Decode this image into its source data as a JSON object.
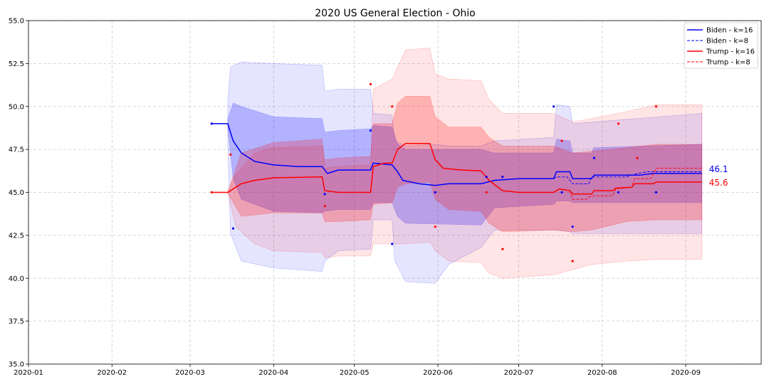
{
  "chart_data": {
    "type": "line",
    "title": "2020 US General Election - Ohio",
    "xlabel": "",
    "ylabel": "",
    "x_axis": "date",
    "xlim": [
      "2020-01-01",
      "2020-09-29"
    ],
    "ylim": [
      35.0,
      55.0
    ],
    "grid": true,
    "legend_position": "top-right",
    "x_ticks": [
      "2020-01",
      "2020-02",
      "2020-03",
      "2020-04",
      "2020-05",
      "2020-06",
      "2020-07",
      "2020-08",
      "2020-09"
    ],
    "y_ticks": [
      "35.0",
      "37.5",
      "40.0",
      "42.5",
      "45.0",
      "47.5",
      "50.0",
      "52.5",
      "55.0"
    ],
    "legend": [
      {
        "label": "Biden - k=16",
        "color": "#0000ff",
        "style": "solid"
      },
      {
        "label": "Biden - k=8",
        "color": "#0000ff",
        "style": "dashed"
      },
      {
        "label": "Trump - k=16",
        "color": "#ff0000",
        "style": "solid"
      },
      {
        "label": "Trump - k=8",
        "color": "#ff0000",
        "style": "dashed"
      }
    ],
    "series": [
      {
        "name": "Biden - k=16",
        "color": "#0000ff",
        "style": "solid",
        "end_label": "46.1",
        "points": [
          [
            "2020-03-09",
            49.0
          ],
          [
            "2020-03-15",
            49.0
          ],
          [
            "2020-03-17",
            48.0
          ],
          [
            "2020-03-20",
            47.3
          ],
          [
            "2020-03-25",
            46.8
          ],
          [
            "2020-04-01",
            46.6
          ],
          [
            "2020-04-10",
            46.5
          ],
          [
            "2020-04-19",
            46.5
          ],
          [
            "2020-04-21",
            46.1
          ],
          [
            "2020-04-25",
            46.3
          ],
          [
            "2020-05-07",
            46.3
          ],
          [
            "2020-05-08",
            46.7
          ],
          [
            "2020-05-15",
            46.6
          ],
          [
            "2020-05-17",
            46.2
          ],
          [
            "2020-05-19",
            45.7
          ],
          [
            "2020-05-25",
            45.5
          ],
          [
            "2020-05-31",
            45.4
          ],
          [
            "2020-06-05",
            45.5
          ],
          [
            "2020-06-17",
            45.5
          ],
          [
            "2020-06-22",
            45.7
          ],
          [
            "2020-07-01",
            45.8
          ],
          [
            "2020-07-14",
            45.8
          ],
          [
            "2020-07-15",
            46.2
          ],
          [
            "2020-07-20",
            46.2
          ],
          [
            "2020-07-21",
            45.8
          ],
          [
            "2020-07-28",
            45.8
          ],
          [
            "2020-07-29",
            46.0
          ],
          [
            "2020-08-15",
            46.0
          ],
          [
            "2020-08-20",
            46.1
          ],
          [
            "2020-09-07",
            46.1
          ]
        ]
      },
      {
        "name": "Biden - k=8",
        "color": "#0000ff",
        "style": "dashed",
        "points": [
          [
            "2020-07-14",
            45.8
          ],
          [
            "2020-07-15",
            45.9
          ],
          [
            "2020-07-19",
            45.9
          ],
          [
            "2020-07-21",
            45.5
          ],
          [
            "2020-07-27",
            45.5
          ],
          [
            "2020-07-28",
            45.9
          ],
          [
            "2020-08-10",
            45.9
          ],
          [
            "2020-08-14",
            46.1
          ],
          [
            "2020-08-18",
            46.2
          ],
          [
            "2020-09-07",
            46.2
          ]
        ]
      },
      {
        "name": "Trump - k=16",
        "color": "#ff0000",
        "style": "solid",
        "end_label": "45.6",
        "points": [
          [
            "2020-03-09",
            45.0
          ],
          [
            "2020-03-15",
            45.0
          ],
          [
            "2020-03-20",
            45.5
          ],
          [
            "2020-03-25",
            45.7
          ],
          [
            "2020-04-01",
            45.85
          ],
          [
            "2020-04-19",
            45.9
          ],
          [
            "2020-04-20",
            45.1
          ],
          [
            "2020-04-25",
            45.0
          ],
          [
            "2020-05-07",
            45.0
          ],
          [
            "2020-05-08",
            46.5
          ],
          [
            "2020-05-12",
            46.7
          ],
          [
            "2020-05-15",
            46.7
          ],
          [
            "2020-05-17",
            47.5
          ],
          [
            "2020-05-20",
            47.85
          ],
          [
            "2020-05-29",
            47.85
          ],
          [
            "2020-05-31",
            46.9
          ],
          [
            "2020-06-03",
            46.4
          ],
          [
            "2020-06-10",
            46.3
          ],
          [
            "2020-06-17",
            46.25
          ],
          [
            "2020-06-20",
            45.7
          ],
          [
            "2020-06-25",
            45.1
          ],
          [
            "2020-07-01",
            45.0
          ],
          [
            "2020-07-14",
            45.0
          ],
          [
            "2020-07-16",
            45.2
          ],
          [
            "2020-07-20",
            45.1
          ],
          [
            "2020-07-21",
            44.9
          ],
          [
            "2020-07-28",
            44.9
          ],
          [
            "2020-07-29",
            45.1
          ],
          [
            "2020-08-05",
            45.1
          ],
          [
            "2020-08-06",
            45.25
          ],
          [
            "2020-08-12",
            45.3
          ],
          [
            "2020-08-13",
            45.5
          ],
          [
            "2020-08-20",
            45.5
          ],
          [
            "2020-08-21",
            45.6
          ],
          [
            "2020-09-07",
            45.6
          ]
        ]
      },
      {
        "name": "Trump - k=8",
        "color": "#ff0000",
        "style": "dashed",
        "points": [
          [
            "2020-07-14",
            45.0
          ],
          [
            "2020-07-16",
            45.2
          ],
          [
            "2020-07-20",
            45.1
          ],
          [
            "2020-07-21",
            44.6
          ],
          [
            "2020-07-26",
            44.6
          ],
          [
            "2020-07-28",
            44.8
          ],
          [
            "2020-08-05",
            44.8
          ],
          [
            "2020-08-06",
            45.2
          ],
          [
            "2020-08-12",
            45.3
          ],
          [
            "2020-08-13",
            45.8
          ],
          [
            "2020-08-19",
            45.8
          ],
          [
            "2020-08-21",
            46.4
          ],
          [
            "2020-09-07",
            46.4
          ]
        ]
      }
    ],
    "bands": [
      {
        "of": "Biden - k=16",
        "color": "#0000ff",
        "opacity": 0.1,
        "points": [
          [
            "2020-03-15",
            50.3,
            47.8
          ],
          [
            "2020-03-16",
            52.3,
            42.6
          ],
          [
            "2020-03-20",
            52.6,
            41.0
          ],
          [
            "2020-04-01",
            52.5,
            40.6
          ],
          [
            "2020-04-19",
            52.4,
            40.4
          ],
          [
            "2020-04-20",
            50.9,
            41.0
          ],
          [
            "2020-04-25",
            51.0,
            41.6
          ],
          [
            "2020-05-07",
            51.0,
            41.7
          ],
          [
            "2020-05-08",
            49.6,
            43.4
          ],
          [
            "2020-05-15",
            49.5,
            43.4
          ],
          [
            "2020-05-16",
            48.0,
            41.0
          ],
          [
            "2020-05-20",
            47.7,
            39.8
          ],
          [
            "2020-05-31",
            47.8,
            39.7
          ],
          [
            "2020-06-05",
            47.7,
            40.8
          ],
          [
            "2020-06-17",
            47.7,
            41.8
          ],
          [
            "2020-06-22",
            48.0,
            42.8
          ],
          [
            "2020-07-14",
            48.2,
            42.8
          ],
          [
            "2020-07-15",
            50.1,
            42.8
          ],
          [
            "2020-07-20",
            50.0,
            42.7
          ],
          [
            "2020-07-21",
            49.0,
            42.6
          ],
          [
            "2020-09-07",
            49.6,
            42.6
          ]
        ]
      },
      {
        "of": "Biden - k=16",
        "color": "#0000ff",
        "opacity": 0.22,
        "points": [
          [
            "2020-03-15",
            49.3,
            48.7
          ],
          [
            "2020-03-17",
            50.2,
            45.8
          ],
          [
            "2020-03-20",
            50.0,
            44.6
          ],
          [
            "2020-04-01",
            49.4,
            43.9
          ],
          [
            "2020-04-19",
            49.3,
            43.8
          ],
          [
            "2020-04-20",
            48.5,
            43.9
          ],
          [
            "2020-04-25",
            48.6,
            44.0
          ],
          [
            "2020-05-07",
            48.7,
            44.0
          ],
          [
            "2020-05-08",
            48.9,
            44.4
          ],
          [
            "2020-05-15",
            48.8,
            44.4
          ],
          [
            "2020-05-17",
            47.8,
            43.6
          ],
          [
            "2020-05-20",
            47.5,
            43.2
          ],
          [
            "2020-06-17",
            47.5,
            43.1
          ],
          [
            "2020-06-22",
            47.3,
            44.1
          ],
          [
            "2020-07-14",
            47.3,
            44.3
          ],
          [
            "2020-07-15",
            48.1,
            44.5
          ],
          [
            "2020-07-20",
            48.0,
            44.5
          ],
          [
            "2020-07-21",
            47.3,
            44.4
          ],
          [
            "2020-07-28",
            47.3,
            44.4
          ],
          [
            "2020-07-29",
            47.6,
            44.4
          ],
          [
            "2020-09-07",
            47.8,
            44.4
          ]
        ]
      },
      {
        "of": "Trump - k=16",
        "color": "#ff0000",
        "opacity": 0.1,
        "points": [
          [
            "2020-03-15",
            45.1,
            44.9
          ],
          [
            "2020-03-18",
            46.0,
            43.0
          ],
          [
            "2020-03-25",
            47.3,
            42.0
          ],
          [
            "2020-04-01",
            47.6,
            41.6
          ],
          [
            "2020-04-19",
            47.7,
            41.5
          ],
          [
            "2020-04-20",
            46.4,
            41.2
          ],
          [
            "2020-04-25",
            46.5,
            41.3
          ],
          [
            "2020-05-07",
            46.6,
            41.3
          ],
          [
            "2020-05-08",
            51.0,
            42.0
          ],
          [
            "2020-05-15",
            51.6,
            42.0
          ],
          [
            "2020-05-20",
            53.3,
            42.0
          ],
          [
            "2020-05-29",
            53.4,
            42.1
          ],
          [
            "2020-05-31",
            51.9,
            41.6
          ],
          [
            "2020-06-05",
            51.6,
            41.0
          ],
          [
            "2020-06-17",
            51.5,
            40.9
          ],
          [
            "2020-06-20",
            50.4,
            40.3
          ],
          [
            "2020-06-25",
            49.6,
            40.0
          ],
          [
            "2020-07-14",
            49.6,
            40.2
          ],
          [
            "2020-07-21",
            49.1,
            40.5
          ],
          [
            "2020-07-28",
            49.3,
            40.8
          ],
          [
            "2020-08-10",
            49.7,
            41.0
          ],
          [
            "2020-08-21",
            50.1,
            41.1
          ],
          [
            "2020-09-07",
            50.1,
            41.1
          ]
        ]
      },
      {
        "of": "Trump - k=16",
        "color": "#ff0000",
        "opacity": 0.22,
        "points": [
          [
            "2020-03-15",
            45.05,
            44.95
          ],
          [
            "2020-03-20",
            47.3,
            43.6
          ],
          [
            "2020-04-01",
            47.9,
            43.8
          ],
          [
            "2020-04-19",
            48.1,
            43.8
          ],
          [
            "2020-04-20",
            46.9,
            43.3
          ],
          [
            "2020-04-25",
            47.0,
            43.3
          ],
          [
            "2020-05-07",
            47.1,
            43.4
          ],
          [
            "2020-05-08",
            49.0,
            44.3
          ],
          [
            "2020-05-15",
            49.0,
            44.4
          ],
          [
            "2020-05-17",
            50.2,
            45.3
          ],
          [
            "2020-05-20",
            50.6,
            45.5
          ],
          [
            "2020-05-29",
            50.6,
            45.6
          ],
          [
            "2020-05-31",
            49.4,
            44.6
          ],
          [
            "2020-06-05",
            48.8,
            44.0
          ],
          [
            "2020-06-17",
            48.8,
            43.9
          ],
          [
            "2020-06-20",
            48.2,
            43.2
          ],
          [
            "2020-06-25",
            47.7,
            42.7
          ],
          [
            "2020-07-14",
            47.7,
            42.8
          ],
          [
            "2020-07-21",
            47.3,
            42.7
          ],
          [
            "2020-07-28",
            47.4,
            42.8
          ],
          [
            "2020-08-10",
            47.6,
            43.3
          ],
          [
            "2020-08-21",
            47.8,
            43.4
          ],
          [
            "2020-09-07",
            47.8,
            43.4
          ]
        ]
      }
    ],
    "scatter": [
      {
        "series": "Biden",
        "color": "#0000ff",
        "points": [
          [
            "2020-03-09",
            49.0
          ],
          [
            "2020-03-17",
            42.9
          ],
          [
            "2020-04-20",
            44.9
          ],
          [
            "2020-05-07",
            48.6
          ],
          [
            "2020-05-15",
            42.0
          ],
          [
            "2020-05-31",
            45.0
          ],
          [
            "2020-06-19",
            45.9
          ],
          [
            "2020-06-25",
            45.9
          ],
          [
            "2020-07-14",
            50.0
          ],
          [
            "2020-07-17",
            45.0
          ],
          [
            "2020-07-21",
            43.0
          ],
          [
            "2020-07-29",
            47.0
          ],
          [
            "2020-08-07",
            45.0
          ],
          [
            "2020-08-21",
            45.0
          ]
        ]
      },
      {
        "series": "Trump",
        "color": "#ff0000",
        "points": [
          [
            "2020-03-09",
            45.0
          ],
          [
            "2020-03-16",
            47.2
          ],
          [
            "2020-04-20",
            44.2
          ],
          [
            "2020-05-07",
            51.3
          ],
          [
            "2020-05-15",
            50.0
          ],
          [
            "2020-05-31",
            43.0
          ],
          [
            "2020-06-19",
            45.0
          ],
          [
            "2020-06-25",
            41.7
          ],
          [
            "2020-07-17",
            48.0
          ],
          [
            "2020-07-21",
            41.0
          ],
          [
            "2020-08-07",
            49.0
          ],
          [
            "2020-08-14",
            47.0
          ],
          [
            "2020-08-21",
            50.0
          ]
        ]
      }
    ]
  }
}
